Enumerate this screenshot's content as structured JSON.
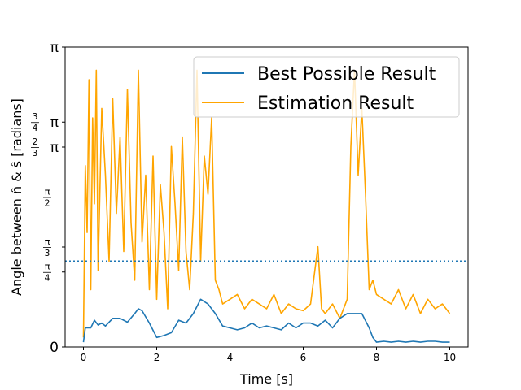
{
  "chart_data": {
    "type": "line",
    "title": "",
    "xlabel": "Time [s]",
    "ylabel": "Angle between n̂ & ŝ [radians]",
    "xlim": [
      -0.5,
      10.5
    ],
    "ylim": [
      0,
      3.14159
    ],
    "x_ticks": [
      0,
      2,
      4,
      6,
      8,
      10
    ],
    "x_tick_labels": [
      "0",
      "2",
      "4",
      "6",
      "8",
      "10"
    ],
    "y_ticks": [
      {
        "value": 0,
        "num": "0",
        "den": "",
        "suffix": ""
      },
      {
        "value": 0.7854,
        "num": "π",
        "den": "4",
        "suffix": ""
      },
      {
        "value": 1.0472,
        "num": "π",
        "den": "3",
        "suffix": ""
      },
      {
        "value": 1.5708,
        "num": "π",
        "den": "2",
        "suffix": ""
      },
      {
        "value": 2.0944,
        "num": "2",
        "den": "3",
        "suffix": "π"
      },
      {
        "value": 2.3562,
        "num": "3",
        "den": "4",
        "suffix": "π"
      },
      {
        "value": 3.14159,
        "num": "π",
        "den": "",
        "suffix": ""
      }
    ],
    "grid": false,
    "legend_position": "top-right",
    "threshold": {
      "y": 0.9,
      "style": "dotted",
      "color": "#1f77b4"
    },
    "series": [
      {
        "name": "Best Possible Result",
        "color": "#1f77b4",
        "x": [
          0,
          0.05,
          0.1,
          0.2,
          0.3,
          0.4,
          0.5,
          0.6,
          0.8,
          1.0,
          1.2,
          1.4,
          1.5,
          1.6,
          1.8,
          2.0,
          2.2,
          2.4,
          2.6,
          2.8,
          3.0,
          3.2,
          3.4,
          3.6,
          3.8,
          4.0,
          4.2,
          4.4,
          4.6,
          4.8,
          5.0,
          5.2,
          5.4,
          5.6,
          5.8,
          6.0,
          6.2,
          6.4,
          6.6,
          6.8,
          7.0,
          7.2,
          7.4,
          7.6,
          7.8,
          7.9,
          8.0,
          8.2,
          8.4,
          8.6,
          8.8,
          9.0,
          9.2,
          9.4,
          9.6,
          9.8,
          10.0
        ],
        "y": [
          0.05,
          0.2,
          0.2,
          0.2,
          0.28,
          0.23,
          0.25,
          0.22,
          0.3,
          0.3,
          0.26,
          0.35,
          0.4,
          0.38,
          0.25,
          0.1,
          0.12,
          0.15,
          0.28,
          0.25,
          0.35,
          0.5,
          0.45,
          0.35,
          0.22,
          0.2,
          0.18,
          0.2,
          0.25,
          0.2,
          0.22,
          0.2,
          0.18,
          0.25,
          0.2,
          0.25,
          0.25,
          0.22,
          0.28,
          0.2,
          0.3,
          0.35,
          0.35,
          0.35,
          0.2,
          0.1,
          0.05,
          0.06,
          0.05,
          0.06,
          0.05,
          0.06,
          0.05,
          0.06,
          0.06,
          0.05,
          0.05
        ]
      },
      {
        "name": "Estimation Result",
        "color": "#ffa500",
        "x": [
          0,
          0.05,
          0.1,
          0.15,
          0.2,
          0.25,
          0.3,
          0.35,
          0.4,
          0.5,
          0.6,
          0.7,
          0.8,
          0.9,
          1.0,
          1.1,
          1.2,
          1.3,
          1.4,
          1.5,
          1.6,
          1.7,
          1.8,
          1.9,
          2.0,
          2.1,
          2.2,
          2.3,
          2.4,
          2.5,
          2.6,
          2.7,
          2.8,
          2.9,
          3.0,
          3.1,
          3.2,
          3.3,
          3.4,
          3.5,
          3.6,
          3.7,
          3.8,
          4.0,
          4.2,
          4.4,
          4.6,
          4.8,
          5.0,
          5.2,
          5.4,
          5.6,
          5.8,
          6.0,
          6.2,
          6.4,
          6.5,
          6.6,
          6.8,
          7.0,
          7.2,
          7.3,
          7.4,
          7.5,
          7.6,
          7.7,
          7.8,
          7.9,
          8.0,
          8.2,
          8.4,
          8.6,
          8.8,
          9.0,
          9.2,
          9.4,
          9.6,
          9.8,
          10.0
        ],
        "y": [
          0.1,
          1.9,
          1.2,
          2.8,
          0.6,
          2.4,
          1.5,
          2.9,
          0.8,
          2.5,
          1.8,
          0.9,
          2.6,
          1.4,
          2.2,
          1.0,
          2.7,
          1.3,
          0.7,
          2.9,
          1.1,
          1.8,
          0.6,
          2.0,
          0.5,
          1.7,
          1.2,
          0.4,
          2.1,
          1.5,
          0.8,
          2.2,
          1.0,
          0.6,
          1.4,
          2.9,
          0.9,
          2.0,
          1.6,
          2.4,
          0.7,
          0.6,
          0.45,
          0.5,
          0.55,
          0.4,
          0.5,
          0.45,
          0.4,
          0.55,
          0.35,
          0.45,
          0.4,
          0.38,
          0.45,
          1.05,
          0.4,
          0.35,
          0.45,
          0.3,
          0.5,
          2.1,
          2.9,
          1.8,
          2.5,
          1.6,
          0.6,
          0.7,
          0.55,
          0.5,
          0.45,
          0.6,
          0.4,
          0.55,
          0.35,
          0.5,
          0.4,
          0.45,
          0.35
        ]
      }
    ]
  }
}
